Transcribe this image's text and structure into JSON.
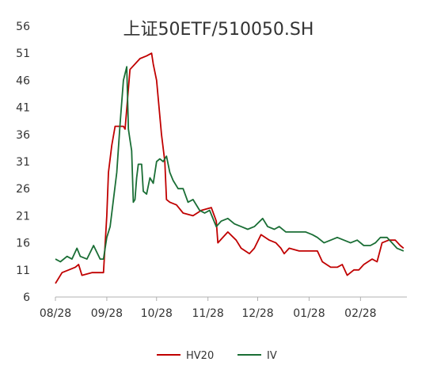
{
  "chart_data": {
    "type": "line",
    "title": "上证50ETF/510050.SH",
    "xlabel": "",
    "ylabel": "",
    "x_ticks": [
      "08/28",
      "09/28",
      "10/28",
      "11/28",
      "12/28",
      "01/28",
      "02/28"
    ],
    "x_range": [
      "08/28",
      "03/28"
    ],
    "y_ticks": [
      6,
      11,
      16,
      21,
      26,
      31,
      36,
      41,
      46,
      51,
      56
    ],
    "ylim": [
      6,
      56
    ],
    "grid": false,
    "legend_position": "bottom",
    "series": [
      {
        "name": "HV20",
        "color": "#c00000",
        "points": [
          [
            "08/28",
            8.5
          ],
          [
            "09/01",
            10.5
          ],
          [
            "09/05",
            11
          ],
          [
            "09/09",
            11.5
          ],
          [
            "09/11",
            12
          ],
          [
            "09/13",
            10
          ],
          [
            "09/19",
            10.5
          ],
          [
            "09/26",
            10.5
          ],
          [
            "09/28",
            21
          ],
          [
            "09/29",
            29
          ],
          [
            "10/01",
            34
          ],
          [
            "10/03",
            37.5
          ],
          [
            "10/08",
            37.5
          ],
          [
            "10/09",
            37
          ],
          [
            "10/12",
            48
          ],
          [
            "10/15",
            49
          ],
          [
            "10/18",
            50
          ],
          [
            "10/22",
            50.5
          ],
          [
            "10/25",
            51
          ],
          [
            "10/26",
            49
          ],
          [
            "10/28",
            46
          ],
          [
            "10/31",
            36
          ],
          [
            "11/02",
            31
          ],
          [
            "11/03",
            24
          ],
          [
            "11/05",
            23.5
          ],
          [
            "11/09",
            23
          ],
          [
            "11/13",
            21.5
          ],
          [
            "11/19",
            21
          ],
          [
            "11/24",
            22
          ],
          [
            "11/30",
            22.5
          ],
          [
            "12/03",
            20
          ],
          [
            "12/04",
            16
          ],
          [
            "12/10",
            18
          ],
          [
            "12/15",
            16.5
          ],
          [
            "12/18",
            15
          ],
          [
            "12/23",
            14
          ],
          [
            "12/26",
            15
          ],
          [
            "12/30",
            17.5
          ],
          [
            "01/04",
            16.5
          ],
          [
            "01/08",
            16
          ],
          [
            "01/11",
            15
          ],
          [
            "01/13",
            14
          ],
          [
            "01/16",
            15
          ],
          [
            "01/22",
            14.5
          ],
          [
            "01/28",
            14.5
          ],
          [
            "02/02",
            14.5
          ],
          [
            "02/05",
            12.5
          ],
          [
            "02/10",
            11.5
          ],
          [
            "02/14",
            11.5
          ],
          [
            "02/17",
            12
          ],
          [
            "02/20",
            10
          ],
          [
            "02/24",
            11
          ],
          [
            "02/27",
            11
          ],
          [
            "03/02",
            12
          ],
          [
            "03/07",
            13
          ],
          [
            "03/10",
            12.5
          ],
          [
            "03/13",
            16
          ],
          [
            "03/17",
            16.5
          ],
          [
            "03/21",
            16.5
          ],
          [
            "03/24",
            15.5
          ],
          [
            "03/26",
            15
          ]
        ]
      },
      {
        "name": "IV",
        "color": "#1a6e35",
        "points": [
          [
            "08/28",
            13
          ],
          [
            "08/31",
            12.5
          ],
          [
            "09/04",
            13.5
          ],
          [
            "09/07",
            13
          ],
          [
            "09/10",
            15
          ],
          [
            "09/12",
            13.5
          ],
          [
            "09/16",
            13
          ],
          [
            "09/20",
            15.5
          ],
          [
            "09/24",
            13
          ],
          [
            "09/26",
            13
          ],
          [
            "09/28",
            17
          ],
          [
            "09/30",
            19
          ],
          [
            "10/02",
            24
          ],
          [
            "10/04",
            29
          ],
          [
            "10/06",
            38
          ],
          [
            "10/08",
            46
          ],
          [
            "10/10",
            48.5
          ],
          [
            "10/11",
            37
          ],
          [
            "10/12",
            35
          ],
          [
            "10/13",
            33
          ],
          [
            "10/14",
            23.5
          ],
          [
            "10/15",
            24
          ],
          [
            "10/16",
            28
          ],
          [
            "10/17",
            30.5
          ],
          [
            "10/19",
            30.5
          ],
          [
            "10/20",
            25.5
          ],
          [
            "10/22",
            25
          ],
          [
            "10/24",
            28
          ],
          [
            "10/26",
            27
          ],
          [
            "10/28",
            31
          ],
          [
            "10/30",
            31.5
          ],
          [
            "11/01",
            31
          ],
          [
            "11/03",
            32
          ],
          [
            "11/05",
            29
          ],
          [
            "11/07",
            27.5
          ],
          [
            "11/10",
            26
          ],
          [
            "11/13",
            26
          ],
          [
            "11/16",
            23.5
          ],
          [
            "11/19",
            24
          ],
          [
            "11/23",
            22
          ],
          [
            "11/26",
            21.5
          ],
          [
            "11/29",
            22
          ],
          [
            "12/03",
            19
          ],
          [
            "12/06",
            20
          ],
          [
            "12/10",
            20.5
          ],
          [
            "12/14",
            19.5
          ],
          [
            "12/18",
            19
          ],
          [
            "12/22",
            18.5
          ],
          [
            "12/26",
            19
          ],
          [
            "12/31",
            20.5
          ],
          [
            "01/03",
            19
          ],
          [
            "01/07",
            18.5
          ],
          [
            "01/10",
            19
          ],
          [
            "01/14",
            18
          ],
          [
            "01/18",
            18
          ],
          [
            "01/22",
            18
          ],
          [
            "01/26",
            18
          ],
          [
            "01/30",
            17.5
          ],
          [
            "02/02",
            17
          ],
          [
            "02/06",
            16
          ],
          [
            "02/10",
            16.5
          ],
          [
            "02/14",
            17
          ],
          [
            "02/18",
            16.5
          ],
          [
            "02/22",
            16
          ],
          [
            "02/26",
            16.5
          ],
          [
            "03/02",
            15.5
          ],
          [
            "03/06",
            15.5
          ],
          [
            "03/09",
            16
          ],
          [
            "03/12",
            17
          ],
          [
            "03/16",
            17
          ],
          [
            "03/19",
            16
          ],
          [
            "03/22",
            15
          ],
          [
            "03/26",
            14.5
          ]
        ]
      }
    ]
  }
}
